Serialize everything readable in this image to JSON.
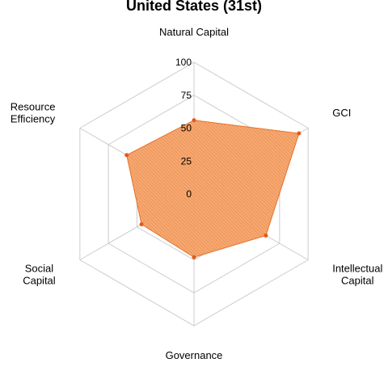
{
  "chart_data": {
    "type": "radar",
    "title": "United States (31st)",
    "axes": [
      "Natural Capital",
      "GCI",
      "Intellectual Capital",
      "Governance",
      "Social Capital",
      "Resource Efficiency"
    ],
    "axis_label_lines": [
      [
        "Natural Capital"
      ],
      [
        "GCI"
      ],
      [
        "Intellectual",
        "Capital"
      ],
      [
        "Governance"
      ],
      [
        "Social",
        "Capital"
      ],
      [
        "Resource",
        "Efficiency"
      ]
    ],
    "values": [
      56,
      92,
      63,
      48,
      46,
      59
    ],
    "rmax": 100,
    "ticks": [
      0,
      25,
      50,
      75,
      100
    ],
    "grid": true,
    "colors": {
      "fill": "#f4a46a",
      "stroke": "#e7702a",
      "point": "#e35a1a",
      "grid": "#cccccc"
    }
  }
}
